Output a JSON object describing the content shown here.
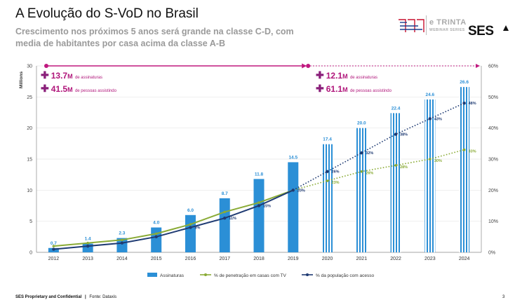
{
  "header": {
    "title": "A Evolução do S-VoD no Brasil",
    "subtitle": "Crescimento nos próximos 5 anos será grande na classe C-D, com media de habitantes por casa acima da classe A-B",
    "brand_line1": "e TRINTA",
    "brand_line2": "WEBINAR SERIES",
    "logo": "SES"
  },
  "callouts": {
    "left": [
      {
        "value": "13.7",
        "unit": "M",
        "label": "de assinaturas"
      },
      {
        "value": "41.5",
        "unit": "M",
        "label": "de pessoas assistindo"
      }
    ],
    "right": [
      {
        "value": "12.1",
        "unit": "M",
        "label": "de assinaturas"
      },
      {
        "value": "61.1",
        "unit": "M",
        "label": "de pessoas assistindo"
      }
    ]
  },
  "footer": {
    "confidential": "SES Proprietary and Confidential",
    "separator": "|",
    "source": "Fonte: Dataxis",
    "page": "3"
  },
  "colors": {
    "bar": "#2b8fd6",
    "bar_forecast": "#2b8fd6",
    "penetration": "#8aab36",
    "access": "#1f3b73",
    "magenta": "#c0187f"
  },
  "chart_data": {
    "type": "bar",
    "categories": [
      "2012",
      "2013",
      "2014",
      "2015",
      "2016",
      "2017",
      "2018",
      "2019",
      "2020",
      "2021",
      "2022",
      "2023",
      "2024"
    ],
    "ylabel": "Millions",
    "ylim": [
      0,
      30
    ],
    "y_ticks": [
      "0",
      "5",
      "10",
      "15",
      "20",
      "25",
      "30"
    ],
    "y2lim": [
      0,
      60
    ],
    "y2_ticks": [
      "0%",
      "10%",
      "20%",
      "30%",
      "40%",
      "50%",
      "60%"
    ],
    "forecast_from": "2020",
    "series": [
      {
        "name": "Assinaturas",
        "kind": "bar",
        "values": [
          0.7,
          1.4,
          2.3,
          4.0,
          6.0,
          8.7,
          11.8,
          14.5,
          17.4,
          20.0,
          22.4,
          24.6,
          26.6
        ],
        "labels": [
          "0.7",
          "1.4",
          "2.3",
          "4.0",
          "6.0",
          "8.7",
          "11.8",
          "14.5",
          "17.4",
          "20.0",
          "22.4",
          "24.6",
          "26.6"
        ]
      },
      {
        "name": "% de penetração em casas com TV",
        "kind": "line",
        "axis": "right",
        "values": [
          2,
          3,
          4,
          6,
          9,
          13,
          16,
          20,
          23,
          26,
          28,
          30,
          33
        ],
        "labels": [
          "",
          "",
          "",
          "",
          "",
          "",
          "",
          "",
          "23%",
          "26%",
          "28%",
          "30%",
          "33%"
        ]
      },
      {
        "name": "% da população com acesso",
        "kind": "line",
        "axis": "right",
        "values": [
          1,
          2,
          3,
          5,
          8,
          11,
          15,
          20,
          26,
          32,
          38,
          43,
          48
        ],
        "labels": [
          "",
          "",
          "",
          "",
          "8%",
          "11%",
          "15%",
          "20%",
          "26%",
          "32%",
          "38%",
          "43%",
          "48%"
        ]
      }
    ]
  }
}
